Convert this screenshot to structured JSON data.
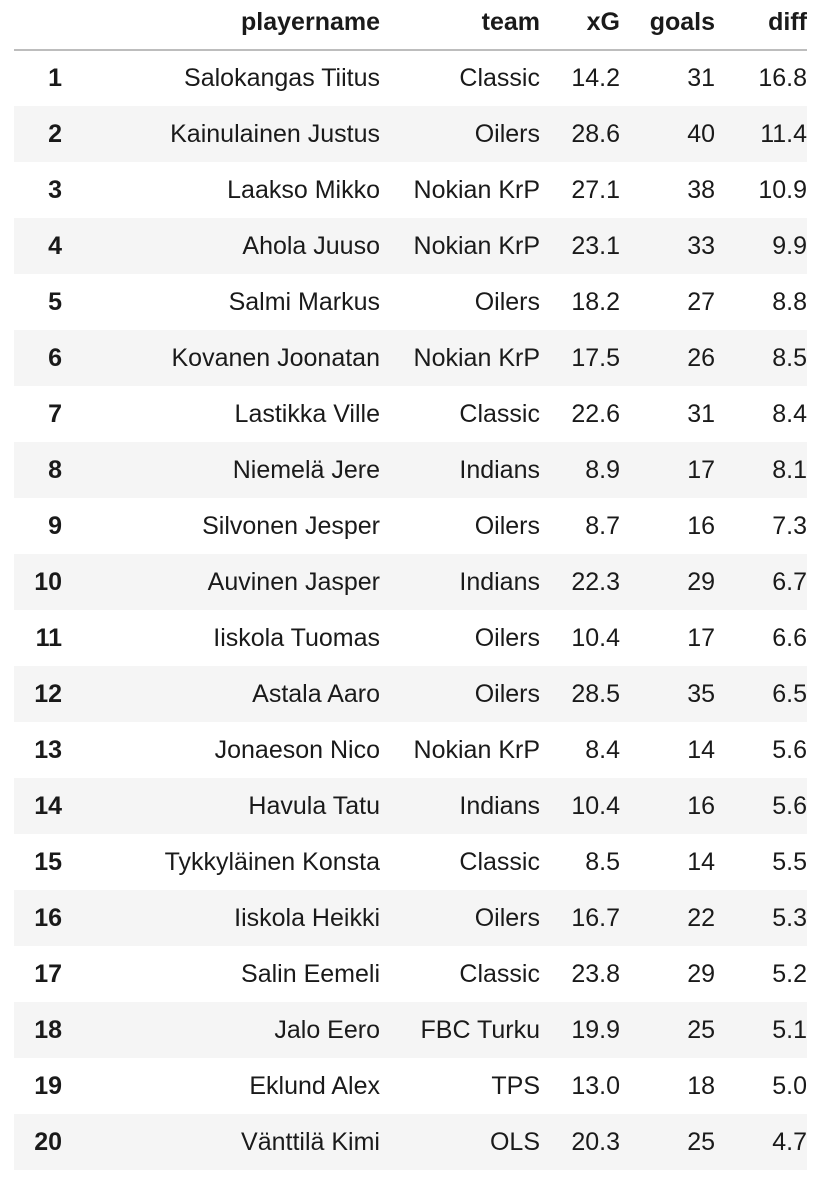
{
  "table": {
    "columns": {
      "index": "",
      "playername": "playername",
      "team": "team",
      "xG": "xG",
      "goals": "goals",
      "diff": "diff"
    },
    "rows": [
      {
        "index": "1",
        "playername": "Salokangas Tiitus",
        "team": "Classic",
        "xG": "14.2",
        "goals": "31",
        "diff": "16.8"
      },
      {
        "index": "2",
        "playername": "Kainulainen Justus",
        "team": "Oilers",
        "xG": "28.6",
        "goals": "40",
        "diff": "11.4"
      },
      {
        "index": "3",
        "playername": "Laakso Mikko",
        "team": "Nokian KrP",
        "xG": "27.1",
        "goals": "38",
        "diff": "10.9"
      },
      {
        "index": "4",
        "playername": "Ahola Juuso",
        "team": "Nokian KrP",
        "xG": "23.1",
        "goals": "33",
        "diff": "9.9"
      },
      {
        "index": "5",
        "playername": "Salmi Markus",
        "team": "Oilers",
        "xG": "18.2",
        "goals": "27",
        "diff": "8.8"
      },
      {
        "index": "6",
        "playername": "Kovanen Joonatan",
        "team": "Nokian KrP",
        "xG": "17.5",
        "goals": "26",
        "diff": "8.5"
      },
      {
        "index": "7",
        "playername": "Lastikka Ville",
        "team": "Classic",
        "xG": "22.6",
        "goals": "31",
        "diff": "8.4"
      },
      {
        "index": "8",
        "playername": "Niemelä Jere",
        "team": "Indians",
        "xG": "8.9",
        "goals": "17",
        "diff": "8.1"
      },
      {
        "index": "9",
        "playername": "Silvonen Jesper",
        "team": "Oilers",
        "xG": "8.7",
        "goals": "16",
        "diff": "7.3"
      },
      {
        "index": "10",
        "playername": "Auvinen Jasper",
        "team": "Indians",
        "xG": "22.3",
        "goals": "29",
        "diff": "6.7"
      },
      {
        "index": "11",
        "playername": "Iiskola Tuomas",
        "team": "Oilers",
        "xG": "10.4",
        "goals": "17",
        "diff": "6.6"
      },
      {
        "index": "12",
        "playername": "Astala Aaro",
        "team": "Oilers",
        "xG": "28.5",
        "goals": "35",
        "diff": "6.5"
      },
      {
        "index": "13",
        "playername": "Jonaeson Nico",
        "team": "Nokian KrP",
        "xG": "8.4",
        "goals": "14",
        "diff": "5.6"
      },
      {
        "index": "14",
        "playername": "Havula Tatu",
        "team": "Indians",
        "xG": "10.4",
        "goals": "16",
        "diff": "5.6"
      },
      {
        "index": "15",
        "playername": "Tykkyläinen Konsta",
        "team": "Classic",
        "xG": "8.5",
        "goals": "14",
        "diff": "5.5"
      },
      {
        "index": "16",
        "playername": "Iiskola Heikki",
        "team": "Oilers",
        "xG": "16.7",
        "goals": "22",
        "diff": "5.3"
      },
      {
        "index": "17",
        "playername": "Salin Eemeli",
        "team": "Classic",
        "xG": "23.8",
        "goals": "29",
        "diff": "5.2"
      },
      {
        "index": "18",
        "playername": "Jalo Eero",
        "team": "FBC Turku",
        "xG": "19.9",
        "goals": "25",
        "diff": "5.1"
      },
      {
        "index": "19",
        "playername": "Eklund Alex",
        "team": "TPS",
        "xG": "13.0",
        "goals": "18",
        "diff": "5.0"
      },
      {
        "index": "20",
        "playername": "Vänttilä Kimi",
        "team": "OLS",
        "xG": "20.3",
        "goals": "25",
        "diff": "4.7"
      }
    ]
  }
}
